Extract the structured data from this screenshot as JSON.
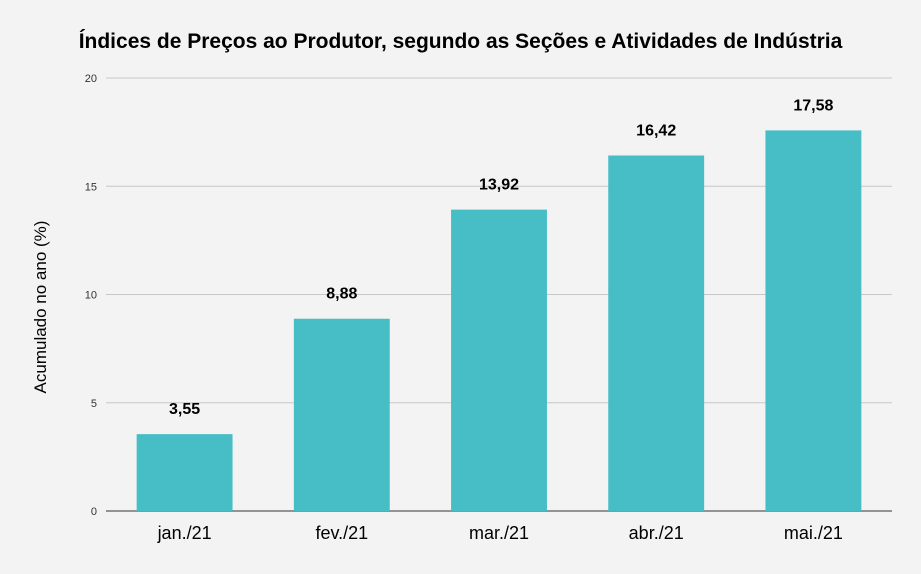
{
  "chart_data": {
    "type": "bar",
    "title": "Índices de Preços ao Produtor, segundo as Seções e Atividades de Indústria",
    "xlabel": "",
    "ylabel": "Acumulado no ano (%)",
    "categories": [
      "jan./21",
      "fev./21",
      "mar./21",
      "abr./21",
      "mai./21"
    ],
    "values": [
      3.55,
      8.88,
      13.92,
      16.42,
      17.58
    ],
    "value_labels": [
      "3,55",
      "8,88",
      "13,92",
      "16,42",
      "17,58"
    ],
    "ylim": [
      0,
      20
    ],
    "yticks": [
      0,
      5,
      10,
      15,
      20
    ],
    "grid": true,
    "legend": "none",
    "bar_color": "#47bdc6",
    "grid_color": "#c8c8c8"
  }
}
